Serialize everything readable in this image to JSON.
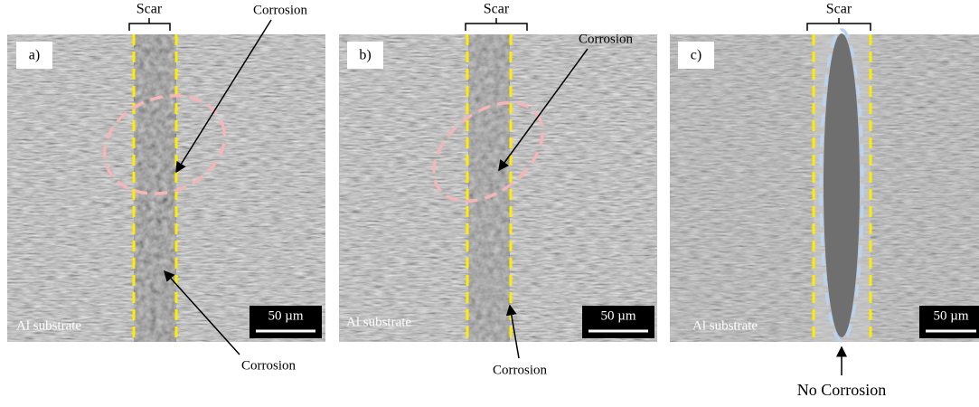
{
  "panels": [
    {
      "label": "a)",
      "scar": "Scar",
      "substrate": "Al substrate",
      "scale_bar": "50 µm",
      "annotations": [
        "Corrosion",
        "Corrosion"
      ]
    },
    {
      "label": "b)",
      "scar": "Scar",
      "substrate": "Al substrate",
      "scale_bar": "50 µm",
      "annotations": [
        "Corrosion",
        "Corrosion"
      ]
    },
    {
      "label": "c)",
      "scar": "Scar",
      "substrate": "Al substrate",
      "scale_bar": "50 µm",
      "annotations": [
        "No Corrosion"
      ]
    }
  ]
}
